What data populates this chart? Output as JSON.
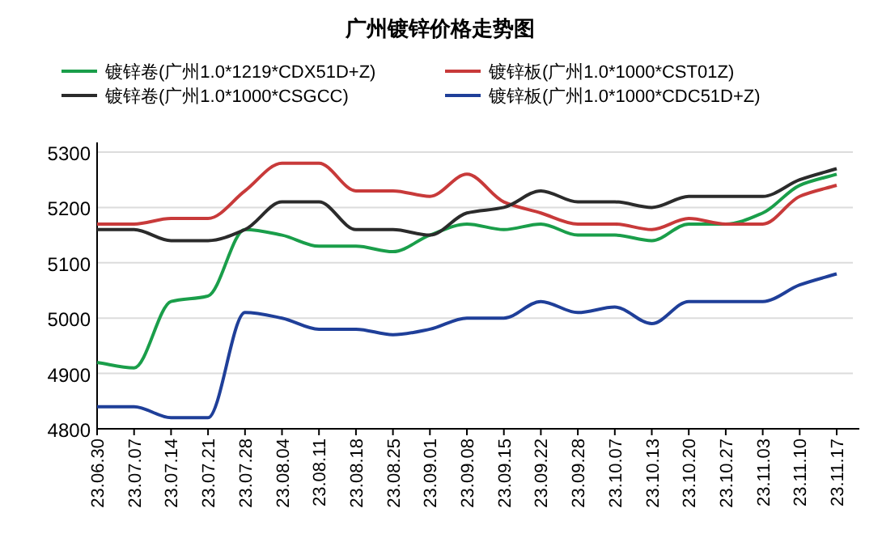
{
  "chart_data": {
    "type": "line",
    "title": "广州镀锌价格走势图",
    "categories": [
      "23.06.30",
      "23.07.07",
      "23.07.14",
      "23.07.21",
      "23.07.28",
      "23.08.04",
      "23.08.11",
      "23.08.18",
      "23.08.25",
      "23.09.01",
      "23.09.08",
      "23.09.15",
      "23.09.22",
      "23.09.28",
      "23.10.07",
      "23.10.13",
      "23.10.20",
      "23.10.27",
      "23.11.03",
      "23.11.10",
      "23.11.17"
    ],
    "series": [
      {
        "name": "镀锌卷(广州1.0*1219*CDX51D+Z)",
        "color": "#1a9e4a",
        "values": [
          4920,
          4910,
          5030,
          5040,
          5160,
          5150,
          5130,
          5130,
          5120,
          5150,
          5170,
          5160,
          5170,
          5150,
          5150,
          5140,
          5170,
          5170,
          5190,
          5240,
          5260
        ]
      },
      {
        "name": "镀锌板(广州1.0*1000*CST01Z)",
        "color": "#c83a3a",
        "values": [
          5170,
          5170,
          5180,
          5180,
          5230,
          5280,
          5280,
          5230,
          5230,
          5220,
          5260,
          5210,
          5190,
          5170,
          5170,
          5160,
          5180,
          5170,
          5170,
          5220,
          5240
        ]
      },
      {
        "name": "镀锌卷(广州1.0*1000*CSGCC)",
        "color": "#2b2b2b",
        "values": [
          5160,
          5160,
          5140,
          5140,
          5160,
          5210,
          5210,
          5160,
          5160,
          5150,
          5190,
          5200,
          5230,
          5210,
          5210,
          5200,
          5220,
          5220,
          5220,
          5250,
          5270
        ]
      },
      {
        "name": "镀锌板(广州1.0*1000*CDC51D+Z)",
        "color": "#1f3f99",
        "values": [
          4840,
          4840,
          4820,
          4820,
          5010,
          5000,
          4980,
          4980,
          4970,
          4980,
          5000,
          5000,
          5030,
          5010,
          5020,
          4990,
          5030,
          5030,
          5030,
          5060,
          5080
        ]
      }
    ],
    "ylim": [
      4800,
      5300
    ],
    "yticks": [
      4800,
      4900,
      5000,
      5100,
      5200,
      5300
    ],
    "grid": "y",
    "legend": "top"
  }
}
